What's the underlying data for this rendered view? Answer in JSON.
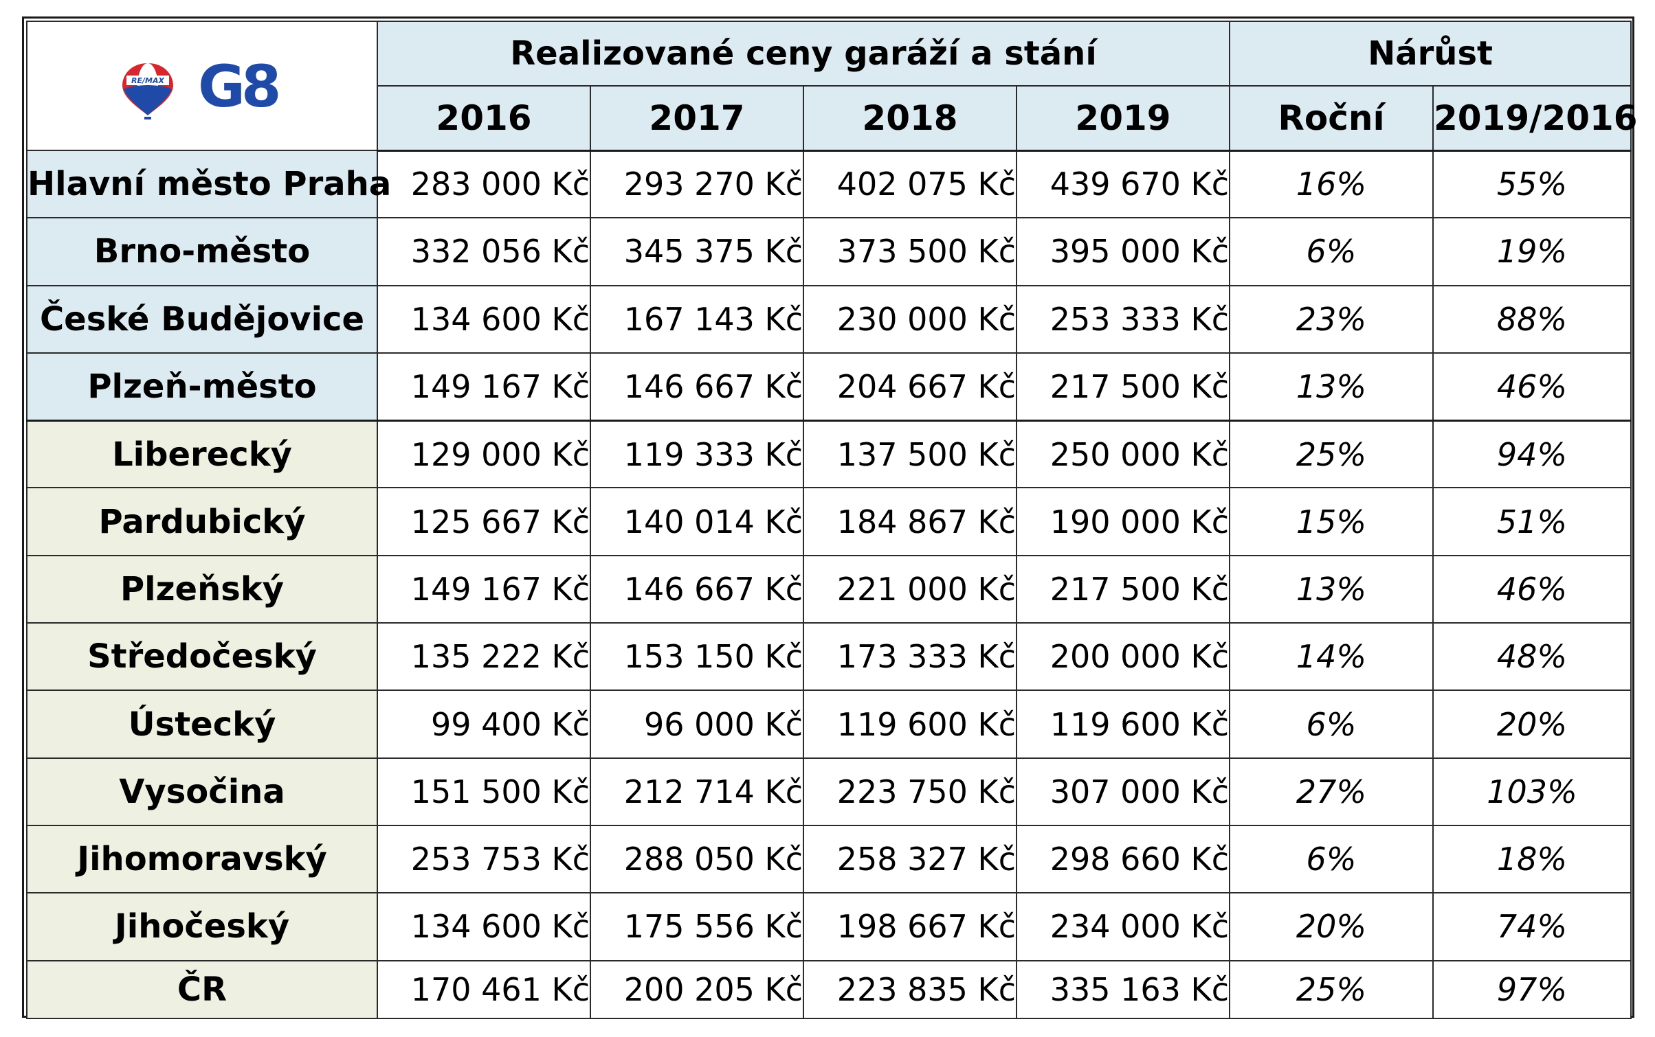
{
  "logo": {
    "balloon_text": "RE/MAX",
    "brand": "G8",
    "icon": "remax-balloon-icon",
    "colors": {
      "red": "#d8262e",
      "blue": "#1f4aa8",
      "white": "#ffffff"
    }
  },
  "header": {
    "group_prices": "Realizované ceny garáží a stání",
    "group_growth": "Nárůst",
    "years": [
      "2016",
      "2017",
      "2018",
      "2019"
    ],
    "growth_cols": [
      "Roční",
      "2019/2016"
    ]
  },
  "colors": {
    "header_bg": "#dcebf2",
    "city_bg": "#dcebf2",
    "kraj_bg": "#eef1e2"
  },
  "rows": [
    {
      "region": "Hlavní město Praha",
      "group": "city",
      "prices": [
        "283 000 Kč",
        "293 270 Kč",
        "402 075 Kč",
        "439 670 Kč"
      ],
      "annual": "16%",
      "total": "55%"
    },
    {
      "region": "Brno-město",
      "group": "city",
      "prices": [
        "332 056 Kč",
        "345 375 Kč",
        "373 500 Kč",
        "395 000 Kč"
      ],
      "annual": "6%",
      "total": "19%"
    },
    {
      "region": "České Budějovice",
      "group": "city",
      "prices": [
        "134 600 Kč",
        "167 143 Kč",
        "230 000 Kč",
        "253 333 Kč"
      ],
      "annual": "23%",
      "total": "88%"
    },
    {
      "region": "Plzeň-město",
      "group": "city",
      "prices": [
        "149 167 Kč",
        "146 667 Kč",
        "204 667 Kč",
        "217 500 Kč"
      ],
      "annual": "13%",
      "total": "46%"
    },
    {
      "region": "Liberecký",
      "group": "kraj",
      "prices": [
        "129 000 Kč",
        "119 333 Kč",
        "137 500 Kč",
        "250 000 Kč"
      ],
      "annual": "25%",
      "total": "94%"
    },
    {
      "region": "Pardubický",
      "group": "kraj",
      "prices": [
        "125 667 Kč",
        "140 014 Kč",
        "184 867 Kč",
        "190 000 Kč"
      ],
      "annual": "15%",
      "total": "51%"
    },
    {
      "region": "Plzeňský",
      "group": "kraj",
      "prices": [
        "149 167 Kč",
        "146 667 Kč",
        "221 000 Kč",
        "217 500 Kč"
      ],
      "annual": "13%",
      "total": "46%"
    },
    {
      "region": "Středočeský",
      "group": "kraj",
      "prices": [
        "135 222 Kč",
        "153 150 Kč",
        "173 333 Kč",
        "200 000 Kč"
      ],
      "annual": "14%",
      "total": "48%"
    },
    {
      "region": "Ústecký",
      "group": "kraj",
      "prices": [
        "99 400 Kč",
        "96 000 Kč",
        "119 600 Kč",
        "119 600 Kč"
      ],
      "annual": "6%",
      "total": "20%"
    },
    {
      "region": "Vysočina",
      "group": "kraj",
      "prices": [
        "151 500 Kč",
        "212 714 Kč",
        "223 750 Kč",
        "307 000 Kč"
      ],
      "annual": "27%",
      "total": "103%"
    },
    {
      "region": "Jihomoravský",
      "group": "kraj",
      "prices": [
        "253 753 Kč",
        "288 050 Kč",
        "258 327 Kč",
        "298 660 Kč"
      ],
      "annual": "6%",
      "total": "18%"
    },
    {
      "region": "Jihočeský",
      "group": "kraj",
      "prices": [
        "134 600 Kč",
        "175 556 Kč",
        "198 667 Kč",
        "234 000 Kč"
      ],
      "annual": "20%",
      "total": "74%"
    },
    {
      "region": "ČR",
      "group": "kraj",
      "prices": [
        "170 461 Kč",
        "200 205 Kč",
        "223 835 Kč",
        "335 163 Kč"
      ],
      "annual": "25%",
      "total": "97%"
    }
  ]
}
